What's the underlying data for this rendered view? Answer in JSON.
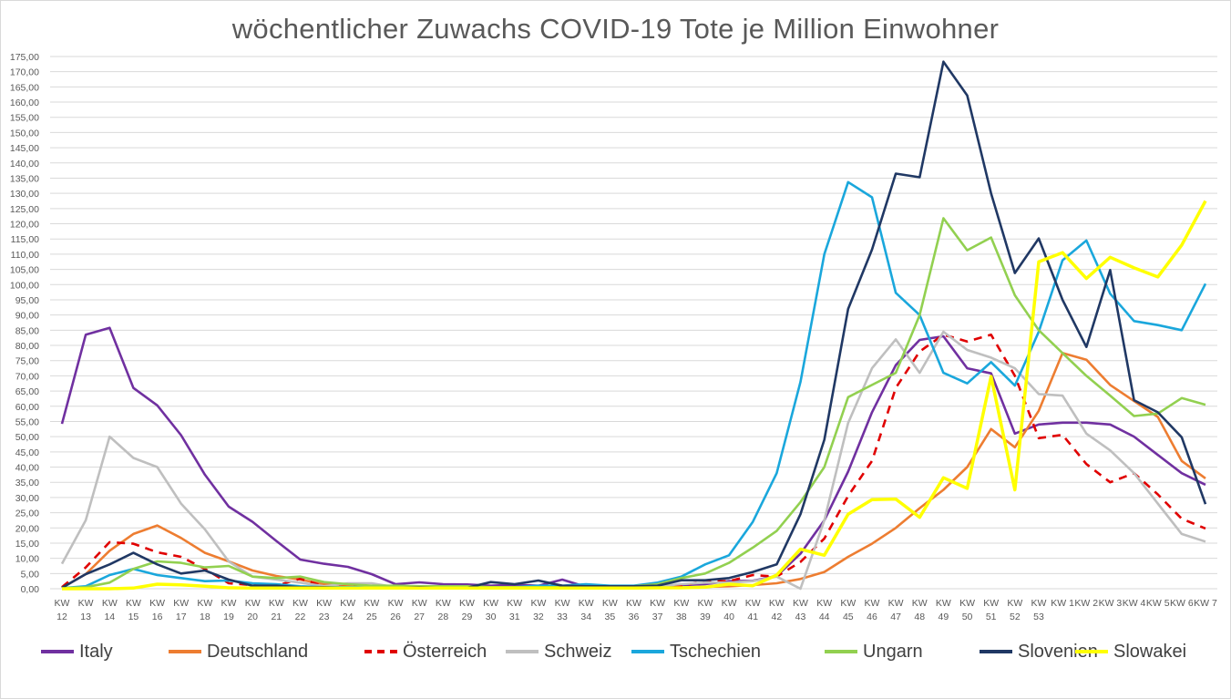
{
  "chart_data": {
    "type": "line",
    "title": "wöchentlicher Zuwachs COVID-19 Tote je Million Einwohner",
    "xlabel": "",
    "ylabel": "",
    "ylim": [
      0,
      175
    ],
    "y_ticks": [
      "0,00",
      "5,00",
      "10,00",
      "15,00",
      "20,00",
      "25,00",
      "30,00",
      "35,00",
      "40,00",
      "45,00",
      "50,00",
      "55,00",
      "60,00",
      "65,00",
      "70,00",
      "75,00",
      "80,00",
      "85,00",
      "90,00",
      "95,00",
      "100,00",
      "105,00",
      "110,00",
      "115,00",
      "120,00",
      "125,00",
      "130,00",
      "135,00",
      "140,00",
      "145,00",
      "150,00",
      "155,00",
      "160,00",
      "165,00",
      "170,00",
      "175,00"
    ],
    "grid": true,
    "legend_position": "bottom",
    "categories": [
      "KW 12",
      "KW 13",
      "KW 14",
      "KW 15",
      "KW 16",
      "KW 17",
      "KW 18",
      "KW 19",
      "KW 20",
      "KW 21",
      "KW 22",
      "KW 23",
      "KW 24",
      "KW 25",
      "KW 26",
      "KW 27",
      "KW 28",
      "KW 29",
      "KW 30",
      "KW 31",
      "KW 32",
      "KW 33",
      "KW 34",
      "KW 35",
      "KW 36",
      "KW 37",
      "KW 38",
      "KW 39",
      "KW 40",
      "KW 41",
      "KW 42",
      "KW 43",
      "KW 44",
      "KW 45",
      "KW 46",
      "KW 47",
      "KW 48",
      "KW 49",
      "KW 50",
      "KW 51",
      "KW 52",
      "KW 53",
      "KW 1",
      "KW 2",
      "KW 3",
      "KW 4",
      "KW 5",
      "KW 6",
      "KW 7"
    ],
    "category_lines": [
      [
        "KW",
        "12"
      ],
      [
        "KW",
        "13"
      ],
      [
        "KW",
        "14"
      ],
      [
        "KW",
        "15"
      ],
      [
        "KW",
        "16"
      ],
      [
        "KW",
        "17"
      ],
      [
        "KW",
        "18"
      ],
      [
        "KW",
        "19"
      ],
      [
        "KW",
        "20"
      ],
      [
        "KW",
        "21"
      ],
      [
        "KW",
        "22"
      ],
      [
        "KW",
        "23"
      ],
      [
        "KW",
        "24"
      ],
      [
        "KW",
        "25"
      ],
      [
        "KW",
        "26"
      ],
      [
        "KW",
        "27"
      ],
      [
        "KW",
        "28"
      ],
      [
        "KW",
        "29"
      ],
      [
        "KW",
        "30"
      ],
      [
        "KW",
        "31"
      ],
      [
        "KW",
        "32"
      ],
      [
        "KW",
        "33"
      ],
      [
        "KW",
        "34"
      ],
      [
        "KW",
        "35"
      ],
      [
        "KW",
        "36"
      ],
      [
        "KW",
        "37"
      ],
      [
        "KW",
        "38"
      ],
      [
        "KW",
        "39"
      ],
      [
        "KW",
        "40"
      ],
      [
        "KW",
        "41"
      ],
      [
        "KW",
        "42"
      ],
      [
        "KW",
        "43"
      ],
      [
        "KW",
        "44"
      ],
      [
        "KW",
        "45"
      ],
      [
        "KW",
        "46"
      ],
      [
        "KW",
        "47"
      ],
      [
        "KW",
        "48"
      ],
      [
        "KW",
        "49"
      ],
      [
        "KW",
        "50"
      ],
      [
        "KW",
        "51"
      ],
      [
        "KW",
        "52"
      ],
      [
        "KW",
        "53"
      ],
      [
        "KW 1",
        ""
      ],
      [
        "KW 2",
        ""
      ],
      [
        "KW 3",
        ""
      ],
      [
        "KW 4",
        ""
      ],
      [
        "KW 5",
        ""
      ],
      [
        "KW 6",
        ""
      ],
      [
        "KW 7",
        ""
      ]
    ],
    "series": [
      {
        "name": "Italy",
        "color": "#7030a0",
        "dashed": false,
        "values": [
          54.2,
          83.5,
          85.8,
          66.0,
          60.3,
          50.5,
          37.5,
          27.0,
          22.0,
          15.7,
          9.6,
          8.2,
          7.2,
          4.8,
          1.5,
          2.1,
          1.5,
          1.4,
          1.0,
          1.3,
          1.0,
          3.0,
          0.6,
          0.6,
          0.6,
          0.8,
          1.2,
          1.5,
          2.5,
          2.6,
          4.2,
          11.5,
          22.5,
          38.5,
          58.0,
          73.5,
          81.8,
          83.0,
          72.5,
          70.8,
          51.0,
          54.0,
          54.6,
          54.6,
          54.0,
          50.0,
          44.0,
          38.0,
          34.2
        ]
      },
      {
        "name": "Deutschland",
        "color": "#ed7d31",
        "dashed": false,
        "values": [
          0.3,
          4.8,
          12.5,
          18.0,
          20.8,
          16.7,
          11.8,
          9.0,
          6.0,
          4.2,
          3.0,
          1.5,
          1.0,
          0.8,
          0.5,
          0.4,
          0.3,
          0.3,
          0.2,
          0.2,
          0.2,
          0.2,
          0.2,
          0.2,
          0.2,
          0.3,
          0.4,
          0.6,
          0.8,
          1.2,
          1.8,
          3.2,
          5.5,
          10.5,
          14.8,
          20.0,
          26.5,
          32.5,
          40.0,
          52.5,
          46.5,
          58.5,
          77.5,
          75.3,
          67.0,
          61.7,
          56.5,
          42.0,
          36.3
        ]
      },
      {
        "name": "Österreich",
        "color": "#e00000",
        "dashed": true,
        "values": [
          0.5,
          7.0,
          15.3,
          14.8,
          12.0,
          10.5,
          6.5,
          1.8,
          1.2,
          1.0,
          3.3,
          0.8,
          0.5,
          0.8,
          0.5,
          0.4,
          0.3,
          0.3,
          0.3,
          0.3,
          0.3,
          0.3,
          0.3,
          0.2,
          0.3,
          0.5,
          1.0,
          2.5,
          2.5,
          4.5,
          4.0,
          8.8,
          16.5,
          30.5,
          42.0,
          66.0,
          78.0,
          83.5,
          81.3,
          83.5,
          70.0,
          49.5,
          50.6,
          41.0,
          35.0,
          38.0,
          31.0,
          23.0,
          19.8
        ]
      },
      {
        "name": "Schweiz",
        "color": "#bfbfbf",
        "dashed": false,
        "values": [
          8.2,
          22.5,
          50.0,
          43.0,
          40.0,
          28.0,
          19.5,
          9.0,
          4.0,
          3.0,
          2.0,
          0.8,
          1.8,
          1.8,
          0.5,
          0.3,
          0.3,
          0.3,
          0.3,
          0.5,
          0.5,
          0.5,
          0.5,
          0.5,
          0.5,
          0.8,
          1.5,
          2.0,
          2.0,
          2.5,
          4.0,
          0.0,
          22.5,
          54.5,
          72.5,
          82.0,
          71.0,
          84.5,
          78.5,
          76.0,
          72.5,
          64.0,
          63.5,
          51.0,
          45.5,
          38.0,
          28.0,
          18.0,
          15.5
        ]
      },
      {
        "name": "Tschechien",
        "color": "#1aa7dc",
        "dashed": false,
        "values": [
          0.2,
          0.8,
          4.5,
          6.5,
          4.5,
          3.5,
          2.5,
          2.7,
          1.8,
          1.5,
          0.8,
          0.5,
          0.5,
          0.5,
          0.5,
          0.5,
          0.5,
          0.5,
          0.5,
          0.5,
          1.0,
          1.0,
          1.5,
          1.0,
          1.0,
          2.0,
          4.0,
          8.0,
          11.0,
          22.0,
          38.0,
          68.0,
          110.0,
          133.7,
          128.7,
          97.3,
          90.0,
          71.0,
          67.5,
          74.5,
          66.8,
          84.5,
          108.0,
          114.5,
          97.0,
          88.0,
          86.7,
          85.0,
          100.3
        ]
      },
      {
        "name": "Ungarn",
        "color": "#92d050",
        "dashed": false,
        "values": [
          0.2,
          0.5,
          2.0,
          6.5,
          9.0,
          8.5,
          7.0,
          7.5,
          4.0,
          3.5,
          4.0,
          2.2,
          1.5,
          1.0,
          1.0,
          0.8,
          0.8,
          0.8,
          0.5,
          0.5,
          0.5,
          0.5,
          0.5,
          0.5,
          0.8,
          1.5,
          3.5,
          5.0,
          8.5,
          13.5,
          19.0,
          28.5,
          40.0,
          63.0,
          67.0,
          71.0,
          90.0,
          121.8,
          111.3,
          115.5,
          96.5,
          85.0,
          77.5,
          70.0,
          63.5,
          56.8,
          57.6,
          62.7,
          60.5
        ]
      },
      {
        "name": "Slovenien",
        "color": "#203864",
        "dashed": false,
        "values": [
          0.3,
          4.8,
          8.0,
          11.8,
          8.0,
          5.0,
          6.0,
          3.0,
          1.0,
          1.0,
          0.5,
          0.5,
          0.3,
          0.3,
          0.3,
          0.5,
          0.3,
          0.3,
          2.2,
          1.5,
          2.7,
          1.0,
          0.8,
          0.8,
          0.8,
          1.0,
          2.8,
          2.8,
          3.5,
          5.5,
          8.0,
          24.5,
          49.0,
          92.0,
          111.5,
          136.5,
          135.3,
          173.3,
          162.2,
          130.0,
          103.8,
          115.2,
          95.0,
          79.5,
          104.8,
          62.0,
          58.0,
          49.8,
          27.8
        ]
      },
      {
        "name": "Slowakei",
        "color": "#ffff00",
        "dashed": false,
        "values": [
          0.0,
          0.0,
          0.0,
          0.2,
          1.5,
          1.3,
          0.8,
          0.3,
          0.2,
          0.2,
          0.2,
          0.2,
          0.2,
          0.2,
          0.2,
          0.2,
          0.2,
          0.2,
          0.2,
          0.2,
          0.2,
          0.2,
          0.2,
          0.2,
          0.2,
          0.3,
          0.3,
          0.5,
          1.5,
          1.0,
          4.5,
          13.0,
          11.0,
          24.5,
          29.3,
          29.5,
          23.5,
          36.5,
          33.0,
          69.8,
          32.5,
          107.5,
          110.5,
          102.0,
          109.0,
          105.5,
          102.5,
          113.0,
          127.5
        ]
      }
    ]
  }
}
